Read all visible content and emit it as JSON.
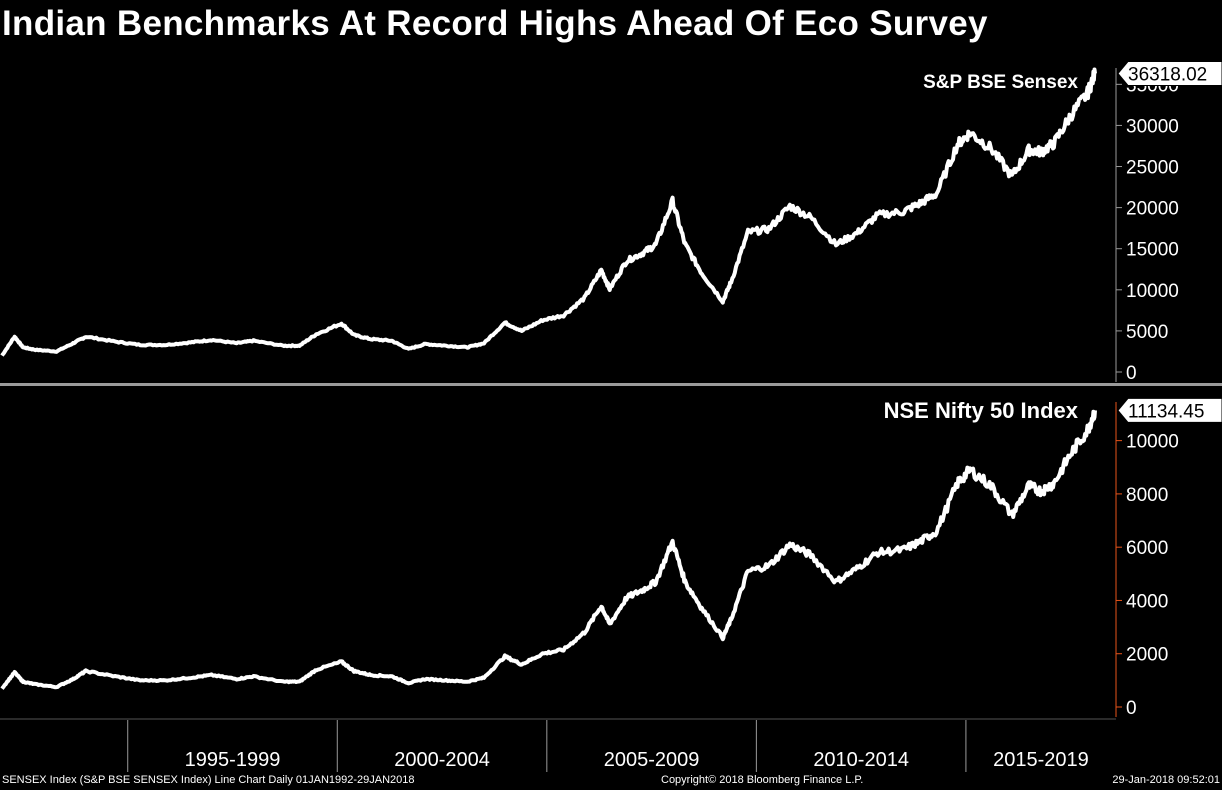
{
  "title": "Indian Benchmarks At Record Highs Ahead Of Eco Survey",
  "footer": {
    "left": "SENSEX Index (S&P BSE SENSEX Index) Line Chart  Daily 01JAN1992-29JAN2018",
    "center": "Copyright© 2018 Bloomberg Finance L.P.",
    "right": "29-Jan-2018 09:52:01"
  },
  "colors": {
    "background": "#000000",
    "line": "#ffffff",
    "divider": "#9a9a9a",
    "axis_top": "#9a9a9a",
    "axis_bottom": "#e8541a"
  },
  "chart_data": [
    {
      "type": "line",
      "title": "S&P BSE Sensex",
      "last_value_label": "36318.02",
      "x_range": [
        1992.0,
        2018.08
      ],
      "ylim": [
        0,
        36500
      ],
      "yticks": [
        0,
        5000,
        10000,
        15000,
        20000,
        25000,
        30000,
        35000
      ],
      "ytick_labels": [
        "0",
        "5000",
        "10000",
        "15000",
        "20000",
        "25000",
        "30000",
        "35000"
      ],
      "x": [
        1992.0,
        1992.3,
        1992.5,
        1992.8,
        1993.3,
        1993.7,
        1994.0,
        1994.7,
        1995.3,
        1995.9,
        1996.5,
        1997.0,
        1997.6,
        1998.0,
        1998.7,
        1999.1,
        1999.5,
        2000.1,
        2000.4,
        2000.8,
        2001.3,
        2001.7,
        2002.1,
        2002.6,
        2003.1,
        2003.5,
        2004.0,
        2004.4,
        2004.9,
        2005.4,
        2005.9,
        2006.3,
        2006.5,
        2006.9,
        2007.3,
        2007.6,
        2008.0,
        2008.3,
        2008.7,
        2009.2,
        2009.4,
        2009.8,
        2010.3,
        2010.8,
        2011.3,
        2011.9,
        2012.4,
        2012.9,
        2013.5,
        2013.9,
        2014.3,
        2014.8,
        2015.1,
        2015.6,
        2016.1,
        2016.5,
        2016.8,
        2017.1,
        2017.5,
        2017.9,
        2018.08
      ],
      "values": [
        2000,
        4300,
        3000,
        2700,
        2500,
        3500,
        4300,
        3700,
        3300,
        3300,
        3600,
        3900,
        3500,
        3800,
        3200,
        3200,
        4600,
        5900,
        4500,
        4000,
        3800,
        2800,
        3400,
        3200,
        3000,
        3500,
        6000,
        5000,
        6300,
        6900,
        9000,
        12400,
        10100,
        13500,
        14500,
        15500,
        20800,
        15500,
        12000,
        8600,
        11000,
        17000,
        17400,
        20200,
        18800,
        15500,
        16900,
        19100,
        19500,
        20500,
        21700,
        27700,
        29100,
        27200,
        23800,
        27000,
        26800,
        27800,
        31200,
        33900,
        36318
      ]
    },
    {
      "type": "line",
      "title": "NSE Nifty 50 Index",
      "last_value_label": "11134.45",
      "x_range": [
        1992.0,
        2018.08
      ],
      "ylim": [
        0,
        11300
      ],
      "yticks": [
        0,
        2000,
        4000,
        6000,
        8000,
        10000
      ],
      "ytick_labels": [
        "0",
        "2000",
        "4000",
        "6000",
        "8000",
        "10000"
      ],
      "x": [
        1992.0,
        1992.3,
        1992.5,
        1992.8,
        1993.3,
        1993.7,
        1994.0,
        1994.7,
        1995.3,
        1995.9,
        1996.5,
        1997.0,
        1997.6,
        1998.0,
        1998.7,
        1999.1,
        1999.5,
        2000.1,
        2000.4,
        2000.8,
        2001.3,
        2001.7,
        2002.1,
        2002.6,
        2003.1,
        2003.5,
        2004.0,
        2004.4,
        2004.9,
        2005.4,
        2005.9,
        2006.3,
        2006.5,
        2006.9,
        2007.3,
        2007.6,
        2008.0,
        2008.3,
        2008.7,
        2009.2,
        2009.4,
        2009.8,
        2010.3,
        2010.8,
        2011.3,
        2011.9,
        2012.4,
        2012.9,
        2013.5,
        2013.9,
        2014.3,
        2014.8,
        2015.1,
        2015.6,
        2016.1,
        2016.5,
        2016.8,
        2017.1,
        2017.5,
        2017.9,
        2018.08
      ],
      "values": [
        700,
        1300,
        950,
        850,
        750,
        1050,
        1350,
        1150,
        1000,
        1000,
        1100,
        1200,
        1050,
        1150,
        950,
        950,
        1400,
        1700,
        1350,
        1200,
        1150,
        900,
        1050,
        1000,
        950,
        1100,
        1900,
        1600,
        2000,
        2150,
        2800,
        3800,
        3100,
        4100,
        4400,
        4700,
        6200,
        4700,
        3700,
        2600,
        3300,
        5100,
        5300,
        6100,
        5700,
        4700,
        5200,
        5800,
        5900,
        6200,
        6600,
        8400,
        8900,
        8300,
        7200,
        8300,
        8100,
        8400,
        9500,
        10400,
        11134
      ]
    }
  ],
  "x_axis": {
    "period_labels": [
      "1995-1999",
      "2000-2004",
      "2005-2009",
      "2010-2014",
      "2015-2019"
    ],
    "boundaries": [
      1995.0,
      2000.0,
      2005.0,
      2010.0,
      2015.0,
      2020.0
    ]
  }
}
